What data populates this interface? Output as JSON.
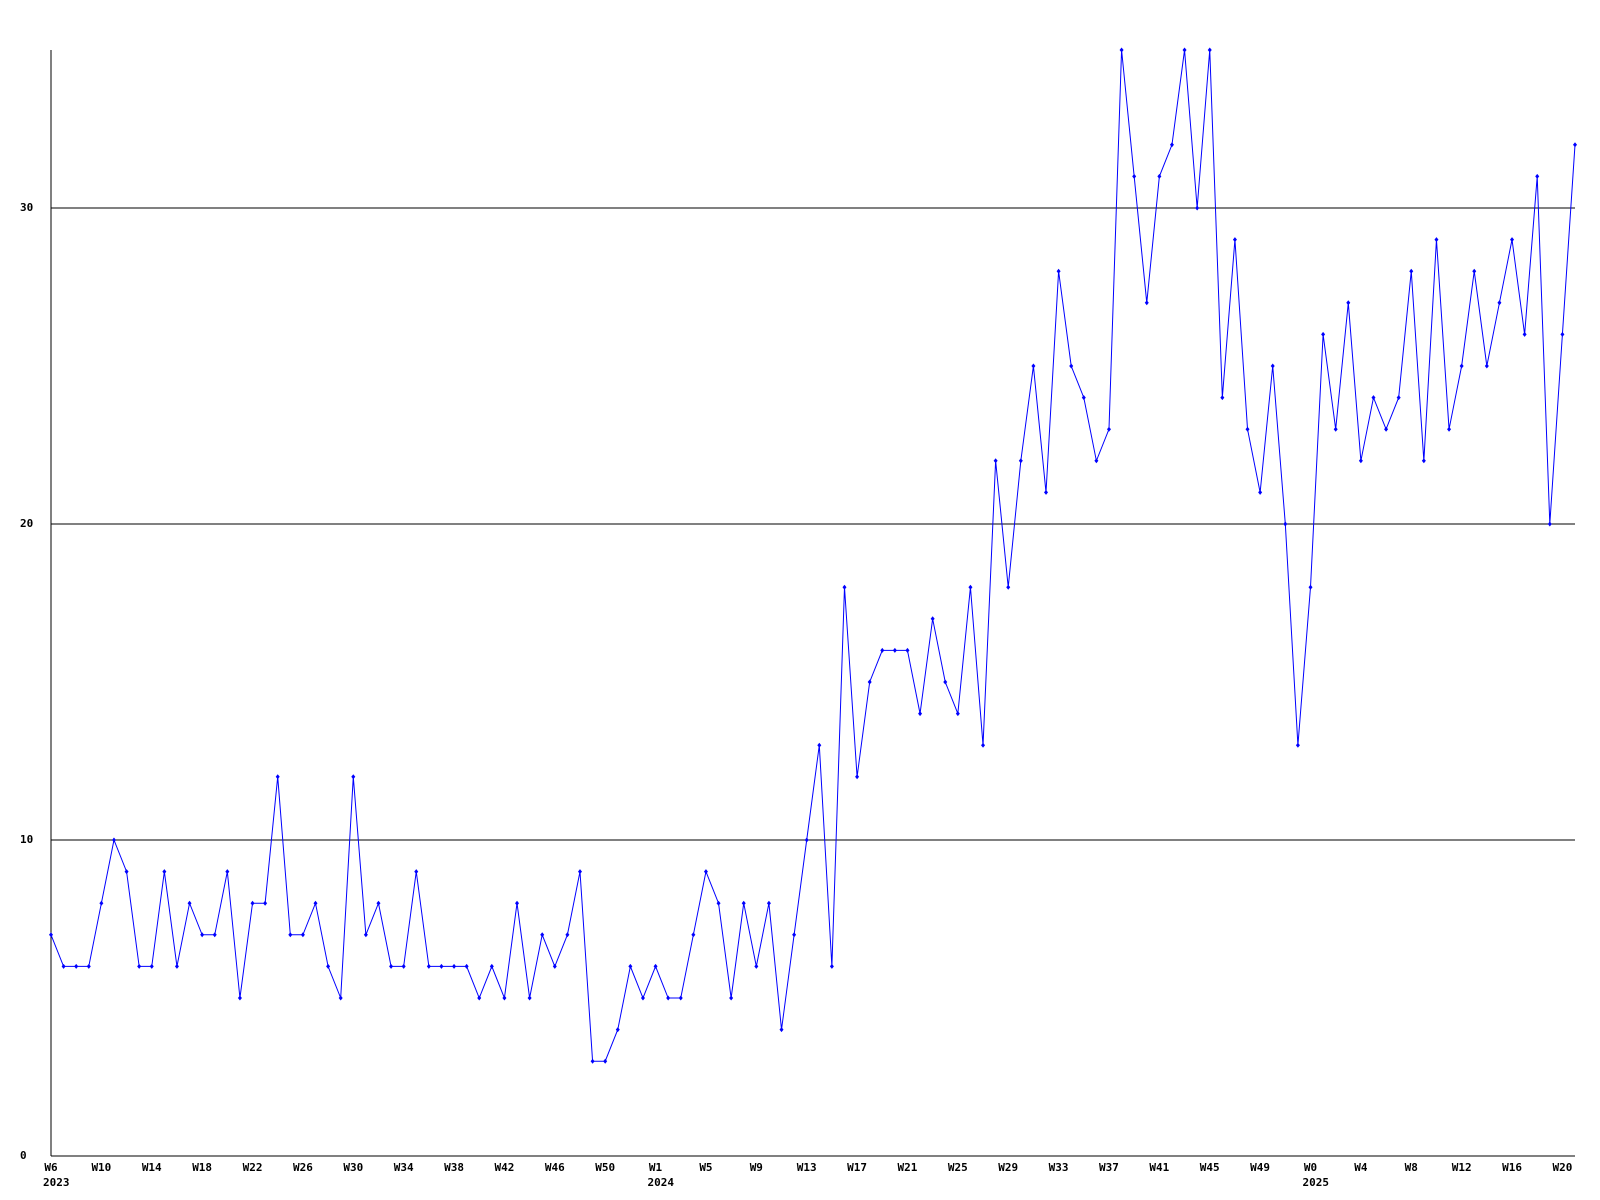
{
  "chart_data": {
    "type": "line",
    "categories": [
      "W6",
      null,
      null,
      null,
      "W10",
      null,
      null,
      null,
      "W14",
      null,
      null,
      null,
      "W18",
      null,
      null,
      null,
      "W22",
      null,
      null,
      null,
      "W26",
      null,
      null,
      null,
      "W30",
      null,
      null,
      null,
      "W34",
      null,
      null,
      null,
      "W38",
      null,
      null,
      null,
      "W42",
      null,
      null,
      null,
      "W46",
      null,
      null,
      null,
      "W50",
      null,
      null,
      null,
      "W1",
      null,
      null,
      null,
      "W5",
      null,
      null,
      null,
      "W9",
      null,
      null,
      null,
      "W13",
      null,
      null,
      null,
      "W17",
      null,
      null,
      null,
      "W21",
      null,
      null,
      null,
      "W25",
      null,
      null,
      null,
      "W29",
      null,
      null,
      null,
      "W33",
      null,
      null,
      null,
      "W37",
      null,
      null,
      null,
      "W41",
      null,
      null,
      null,
      "W45",
      null,
      null,
      null,
      "W49",
      null,
      null,
      null,
      "W0",
      null,
      null,
      null,
      "W4",
      null,
      null,
      null,
      "W8",
      null,
      null,
      null,
      "W12",
      null,
      null,
      null,
      "W16",
      null,
      null,
      null,
      "W20",
      null
    ],
    "years": [
      "2023",
      null,
      null,
      null,
      null,
      null,
      null,
      null,
      null,
      null,
      null,
      null,
      null,
      null,
      null,
      null,
      null,
      null,
      null,
      null,
      null,
      null,
      null,
      null,
      null,
      null,
      null,
      null,
      null,
      null,
      null,
      null,
      null,
      null,
      null,
      null,
      null,
      null,
      null,
      null,
      null,
      null,
      null,
      null,
      null,
      null,
      null,
      null,
      "2024",
      null,
      null,
      null,
      null,
      null,
      null,
      null,
      null,
      null,
      null,
      null,
      null,
      null,
      null,
      null,
      null,
      null,
      null,
      null,
      null,
      null,
      null,
      null,
      null,
      null,
      null,
      null,
      null,
      null,
      null,
      null,
      null,
      null,
      null,
      null,
      null,
      null,
      null,
      null,
      null,
      null,
      null,
      null,
      null,
      null,
      null,
      null,
      null,
      null,
      null,
      null,
      "2025",
      null,
      null,
      null,
      null,
      null,
      null,
      null,
      null,
      null,
      null,
      null,
      null,
      null,
      null,
      null,
      null,
      null,
      null,
      null,
      null,
      null
    ],
    "series": [
      {
        "color": "#0000ff",
        "values": [
          7,
          6,
          6,
          6,
          8,
          10,
          9,
          6,
          6,
          9,
          6,
          8,
          7,
          7,
          9,
          5,
          8,
          8,
          12,
          7,
          7,
          8,
          6,
          5,
          12,
          7,
          8,
          6,
          6,
          9,
          6,
          6,
          6,
          6,
          5,
          6,
          5,
          8,
          5,
          7,
          6,
          7,
          9,
          3,
          3,
          4,
          6,
          5,
          6,
          5,
          5,
          7,
          9,
          8,
          5,
          8,
          6,
          8,
          4,
          7,
          10,
          13,
          6,
          18,
          12,
          15,
          16,
          16,
          16,
          14,
          17,
          15,
          14,
          18,
          13,
          22,
          18,
          22,
          25,
          21,
          28,
          25,
          24,
          22,
          23,
          35,
          31,
          27,
          31,
          32,
          35,
          30,
          35,
          24,
          29,
          23,
          21,
          25,
          20,
          13,
          18,
          26,
          23,
          27,
          22,
          24,
          23,
          24,
          28,
          22,
          29,
          23,
          25,
          28,
          25,
          27,
          29,
          26,
          31,
          20,
          26,
          32
        ]
      }
    ],
    "ylim": [
      0,
      35
    ],
    "yticks": [
      0,
      10,
      20,
      30
    ],
    "grid": true
  }
}
